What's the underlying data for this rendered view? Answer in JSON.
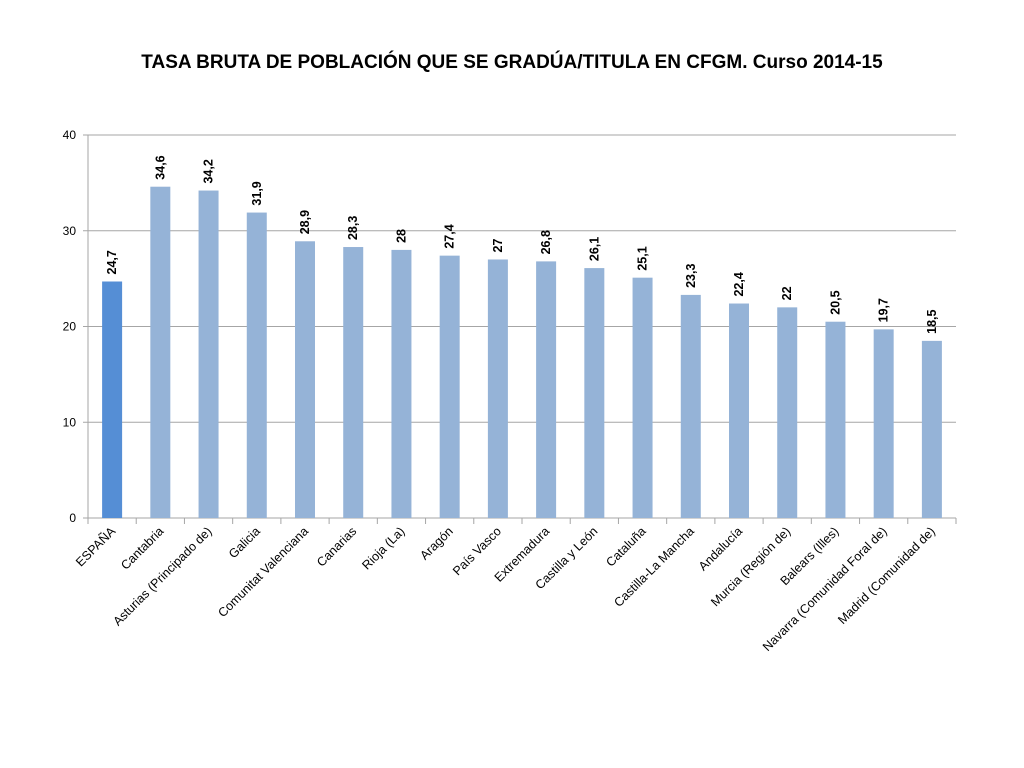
{
  "chart_data": {
    "type": "bar",
    "title": "TASA BRUTA DE POBLACIÓN QUE SE GRADÚA/TITULA EN CFGM. Curso 2014-15",
    "xlabel": "",
    "ylabel": "",
    "ylim": [
      0,
      40
    ],
    "yticks": [
      0,
      10,
      20,
      30,
      40
    ],
    "grid": true,
    "legend": "none",
    "categories": [
      "ESPAÑA",
      "Cantabria",
      "Asturias (Principado de)",
      "Galicia",
      "Comunitat Valenciana",
      "Canarias",
      "Rioja (La)",
      "Aragón",
      "País Vasco",
      "Extremadura",
      "Castilla y León",
      "Cataluña",
      "Castilla-La Mancha",
      "Andalucía",
      "Murcia (Región de)",
      "Balears (Illes)",
      "Navarra (Comunidad Foral de)",
      "Madrid (Comunidad de)"
    ],
    "values": [
      24.7,
      34.6,
      34.2,
      31.9,
      28.9,
      28.3,
      28,
      27.4,
      27,
      26.8,
      26.1,
      25.1,
      23.3,
      22.4,
      22,
      20.5,
      19.7,
      18.5
    ],
    "data_labels": [
      "24,7",
      "34,6",
      "34,2",
      "31,9",
      "28,9",
      "28,3",
      "28",
      "27,4",
      "27",
      "26,8",
      "26,1",
      "25,1",
      "23,3",
      "22,4",
      "22",
      "20,5",
      "19,7",
      "18,5"
    ],
    "colors": {
      "highlight": "#558ED5",
      "bar": "#95B3D7",
      "grid": "#A6A6A6"
    }
  }
}
